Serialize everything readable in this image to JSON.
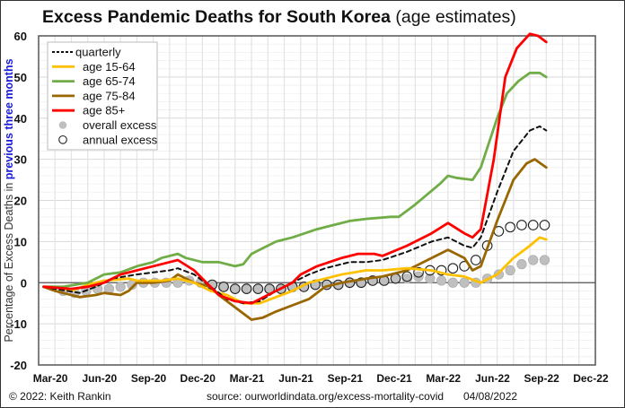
{
  "chart_data": {
    "type": "line",
    "title": "Excess Pandemic Deaths for South Korea",
    "subtitle": "(age estimates)",
    "ylabel_parts": [
      "Percentage of Excess Deaths in ",
      "previous three months"
    ],
    "ylabel_colors": [
      "#333333",
      "#1a1adb"
    ],
    "xlabel": "",
    "ylim": [
      -20,
      60
    ],
    "yticks": [
      60,
      50,
      40,
      30,
      20,
      10,
      0,
      -10,
      -20
    ],
    "ytick_labels": [
      "60",
      "50",
      "40",
      "30",
      "20",
      "10",
      "0",
      "-10",
      "-20"
    ],
    "x_unit": "months since start of Mar-20",
    "xlim": [
      0,
      34
    ],
    "xtick_positions": [
      0.5,
      3.5,
      6.5,
      9.5,
      12.5,
      15.5,
      18.5,
      21.5,
      24.5,
      27.5,
      30.5,
      33.5
    ],
    "xtick_labels": [
      "Mar-20",
      "Jun-20",
      "Sep-20",
      "Dec-20",
      "Mar-21",
      "Jun-21",
      "Sep-21",
      "Dec-21",
      "Mar-22",
      "Jun-22",
      "Sep-22",
      "Dec-22"
    ],
    "grid": true,
    "legend_position": "top-left",
    "series": [
      {
        "name": "quarterly",
        "color": "#111111",
        "style": "dashed",
        "points": [
          [
            0.3,
            -1
          ],
          [
            1,
            -1.5
          ],
          [
            2.5,
            -2.5
          ],
          [
            3.5,
            -1
          ],
          [
            4.5,
            1
          ],
          [
            6,
            2
          ],
          [
            7,
            2.5
          ],
          [
            8,
            3
          ],
          [
            8.5,
            3.5
          ],
          [
            9.5,
            2
          ],
          [
            10.5,
            -1
          ],
          [
            11.5,
            -4
          ],
          [
            12.5,
            -5
          ],
          [
            13.5,
            -4.5
          ],
          [
            14.5,
            -2
          ],
          [
            15.5,
            0
          ],
          [
            16.5,
            2
          ],
          [
            17.5,
            3.5
          ],
          [
            19,
            5
          ],
          [
            20,
            5
          ],
          [
            21,
            5.5
          ],
          [
            22.5,
            7.5
          ],
          [
            24,
            10
          ],
          [
            25,
            11
          ],
          [
            26,
            9
          ],
          [
            26.5,
            8.5
          ],
          [
            27,
            11
          ],
          [
            28,
            22
          ],
          [
            29,
            32
          ],
          [
            30,
            37
          ],
          [
            30.6,
            38
          ],
          [
            31,
            37
          ]
        ]
      },
      {
        "name": "age 15-64",
        "color": "#ffc000",
        "style": "solid",
        "points": [
          [
            0.3,
            -1
          ],
          [
            1,
            -1
          ],
          [
            2,
            -2
          ],
          [
            3,
            -0.5
          ],
          [
            4,
            0.5
          ],
          [
            5.5,
            1
          ],
          [
            6,
            0.5
          ],
          [
            7.5,
            0.5
          ],
          [
            8.5,
            1
          ],
          [
            9.5,
            0
          ],
          [
            10.5,
            -2
          ],
          [
            11.5,
            -3
          ],
          [
            12.5,
            -5
          ],
          [
            13.5,
            -5
          ],
          [
            14.5,
            -3.5
          ],
          [
            15.5,
            -2
          ],
          [
            16.5,
            0
          ],
          [
            17.5,
            1
          ],
          [
            18.5,
            2
          ],
          [
            20,
            3
          ],
          [
            21,
            3
          ],
          [
            22.5,
            3.5
          ],
          [
            24,
            3
          ],
          [
            25,
            2
          ],
          [
            26,
            1.5
          ],
          [
            27,
            0
          ],
          [
            28,
            2
          ],
          [
            29,
            6
          ],
          [
            30,
            9
          ],
          [
            30.6,
            11
          ],
          [
            31,
            10.5
          ]
        ]
      },
      {
        "name": "age 65-74",
        "color": "#70ad47",
        "style": "solid",
        "points": [
          [
            0.3,
            -1
          ],
          [
            1.5,
            -1
          ],
          [
            3,
            0
          ],
          [
            4,
            2
          ],
          [
            5,
            2.5
          ],
          [
            6,
            4
          ],
          [
            7,
            5
          ],
          [
            7.5,
            6
          ],
          [
            8.5,
            7
          ],
          [
            9,
            6
          ],
          [
            10,
            5
          ],
          [
            11,
            5
          ],
          [
            12,
            4
          ],
          [
            12.5,
            4.5
          ],
          [
            13,
            7
          ],
          [
            14.5,
            10
          ],
          [
            15.5,
            11
          ],
          [
            17,
            13
          ],
          [
            18,
            14
          ],
          [
            19,
            15
          ],
          [
            20,
            15.5
          ],
          [
            21.5,
            16
          ],
          [
            22,
            16
          ],
          [
            23,
            19
          ],
          [
            24.5,
            24
          ],
          [
            25,
            26
          ],
          [
            25.5,
            25.5
          ],
          [
            26.5,
            25
          ],
          [
            27,
            28
          ],
          [
            28,
            40
          ],
          [
            28.6,
            46
          ],
          [
            29.3,
            49
          ],
          [
            30,
            51
          ],
          [
            30.6,
            51
          ],
          [
            31,
            50
          ]
        ]
      },
      {
        "name": "age 75-84",
        "color": "#996600",
        "style": "solid",
        "points": [
          [
            0.3,
            -1
          ],
          [
            1,
            -2
          ],
          [
            2.5,
            -3.5
          ],
          [
            3.5,
            -3
          ],
          [
            4,
            -2.5
          ],
          [
            5,
            -3
          ],
          [
            5.5,
            -2
          ],
          [
            6,
            0
          ],
          [
            7,
            0
          ],
          [
            8,
            0.5
          ],
          [
            8.5,
            2
          ],
          [
            9.5,
            0
          ],
          [
            10.5,
            -1
          ],
          [
            11,
            -3
          ],
          [
            12,
            -6
          ],
          [
            13,
            -9
          ],
          [
            13.7,
            -8.5
          ],
          [
            14.5,
            -7
          ],
          [
            15.5,
            -5.5
          ],
          [
            16.5,
            -4
          ],
          [
            17.5,
            -1
          ],
          [
            18.5,
            0
          ],
          [
            20,
            1
          ],
          [
            21,
            1.5
          ],
          [
            22.5,
            3
          ],
          [
            24,
            6
          ],
          [
            25,
            8
          ],
          [
            26,
            6
          ],
          [
            26.5,
            3
          ],
          [
            27,
            4
          ],
          [
            28,
            15
          ],
          [
            29,
            25
          ],
          [
            29.8,
            29
          ],
          [
            30.3,
            30
          ],
          [
            31,
            28
          ]
        ]
      },
      {
        "name": "age 85+",
        "color": "#ff0000",
        "style": "solid",
        "points": [
          [
            0.3,
            -1
          ],
          [
            2,
            -1.5
          ],
          [
            3,
            -1
          ],
          [
            4,
            0
          ],
          [
            5,
            2
          ],
          [
            6.5,
            3.5
          ],
          [
            8,
            5
          ],
          [
            8.5,
            5.5
          ],
          [
            9.5,
            3
          ],
          [
            10,
            1
          ],
          [
            11,
            -3
          ],
          [
            12,
            -4.5
          ],
          [
            13,
            -5
          ],
          [
            14,
            -3
          ],
          [
            15.5,
            0
          ],
          [
            16,
            2
          ],
          [
            17,
            4
          ],
          [
            18.5,
            6
          ],
          [
            19.5,
            7
          ],
          [
            20.5,
            7
          ],
          [
            21,
            6.5
          ],
          [
            22.5,
            9
          ],
          [
            24,
            12
          ],
          [
            25,
            14.5
          ],
          [
            26,
            12
          ],
          [
            26.5,
            11
          ],
          [
            27,
            13
          ],
          [
            27.8,
            30
          ],
          [
            28.5,
            50
          ],
          [
            29.2,
            57
          ],
          [
            30,
            60.5
          ],
          [
            30.5,
            60
          ],
          [
            31,
            58.5
          ]
        ]
      }
    ],
    "markers": [
      {
        "name": "overall excess",
        "type": "filled-circle",
        "color": "#bfbfbf",
        "points": [
          [
            1.5,
            -2
          ],
          [
            2.2,
            -2.5
          ],
          [
            2.9,
            -2
          ],
          [
            3.6,
            -1.5
          ],
          [
            4.3,
            -1.5
          ],
          [
            5,
            -1
          ],
          [
            5.7,
            -0.5
          ],
          [
            6.4,
            0
          ],
          [
            7.1,
            0
          ],
          [
            7.8,
            0
          ],
          [
            8.5,
            0
          ],
          [
            9.2,
            0.5
          ],
          [
            9.9,
            0
          ],
          [
            10.6,
            -0.5
          ],
          [
            11.3,
            -1
          ],
          [
            12,
            -1.5
          ],
          [
            12.7,
            -1.5
          ],
          [
            13.4,
            -1.5
          ],
          [
            14.1,
            -1.5
          ],
          [
            14.8,
            -1.5
          ],
          [
            15.5,
            -1
          ],
          [
            16.2,
            -1
          ],
          [
            16.9,
            -0.5
          ],
          [
            17.6,
            -0.5
          ],
          [
            18.3,
            -0.5
          ],
          [
            19,
            0
          ],
          [
            19.7,
            0
          ],
          [
            20.4,
            0.5
          ],
          [
            21.1,
            0.5
          ],
          [
            21.8,
            1
          ],
          [
            22.5,
            1
          ],
          [
            23.2,
            1.5
          ],
          [
            23.9,
            1
          ],
          [
            24.6,
            0.5
          ],
          [
            25.3,
            0
          ],
          [
            26,
            0
          ],
          [
            26.7,
            0
          ],
          [
            27.4,
            1
          ],
          [
            28.1,
            2
          ],
          [
            28.8,
            3
          ],
          [
            29.5,
            4.5
          ],
          [
            30.2,
            5.5
          ],
          [
            30.9,
            5.5
          ]
        ]
      },
      {
        "name": "annual excess",
        "type": "open-circle",
        "color": "#222222",
        "points": [
          [
            10.6,
            -0.5
          ],
          [
            11.3,
            -1
          ],
          [
            12,
            -1.5
          ],
          [
            12.7,
            -1.5
          ],
          [
            13.4,
            -1.5
          ],
          [
            14.1,
            -1.5
          ],
          [
            14.8,
            -1.5
          ],
          [
            15.5,
            -1
          ],
          [
            16.2,
            -1
          ],
          [
            16.9,
            -0.5
          ],
          [
            17.6,
            -0.5
          ],
          [
            18.3,
            -0.5
          ],
          [
            19,
            0
          ],
          [
            19.7,
            0
          ],
          [
            20.4,
            0.5
          ],
          [
            21.1,
            0.5
          ],
          [
            21.8,
            1
          ],
          [
            22.5,
            1.5
          ],
          [
            23.2,
            2.5
          ],
          [
            23.9,
            3
          ],
          [
            24.6,
            3
          ],
          [
            25.3,
            3.5
          ],
          [
            26,
            4
          ],
          [
            26.7,
            5.5
          ],
          [
            27.4,
            9
          ],
          [
            28.1,
            12.5
          ],
          [
            28.8,
            13.5
          ],
          [
            29.5,
            14
          ],
          [
            30.2,
            14
          ],
          [
            30.9,
            14
          ]
        ]
      }
    ]
  },
  "footer": {
    "copyright": "© 2022: Keith Rankin",
    "source": "source: ourworldindata.org/excess-mortality-covid",
    "date": "04/08/2022"
  }
}
